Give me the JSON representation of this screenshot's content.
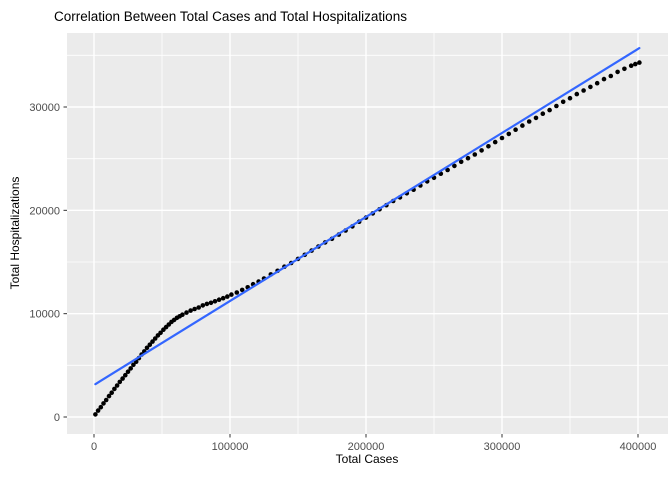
{
  "title": "Correlation Between Total Cases and Total Hospitalizations",
  "chart_data": {
    "type": "scatter",
    "title": "Correlation Between Total Cases and Total Hospitalizations",
    "xlabel": "Total Cases",
    "ylabel": "Total Hospitalizations",
    "x_ticks": [
      0,
      100000,
      200000,
      300000,
      400000
    ],
    "x_tick_labels": [
      "0",
      "100000",
      "200000",
      "300000",
      "400000"
    ],
    "x_minor_ticks": [
      50000,
      150000,
      250000,
      350000
    ],
    "y_ticks": [
      0,
      10000,
      20000,
      30000
    ],
    "y_tick_labels": [
      "0",
      "10000",
      "20000",
      "30000"
    ],
    "y_minor_ticks": [
      5000,
      15000,
      25000,
      35000
    ],
    "xlim": [
      -20000,
      422000
    ],
    "ylim": [
      -1700,
      37200
    ],
    "grid": true,
    "legend": false,
    "points": [
      [
        1000,
        250
      ],
      [
        3000,
        620
      ],
      [
        5000,
        950
      ],
      [
        7000,
        1320
      ],
      [
        9000,
        1650
      ],
      [
        11000,
        2020
      ],
      [
        13000,
        2350
      ],
      [
        15000,
        2720
      ],
      [
        17000,
        3050
      ],
      [
        19000,
        3400
      ],
      [
        21000,
        3720
      ],
      [
        23000,
        4050
      ],
      [
        25000,
        4380
      ],
      [
        27000,
        4700
      ],
      [
        29000,
        5050
      ],
      [
        31000,
        5350
      ],
      [
        33000,
        5700
      ],
      [
        35000,
        6050
      ],
      [
        37000,
        6350
      ],
      [
        39000,
        6700
      ],
      [
        41000,
        7000
      ],
      [
        43000,
        7300
      ],
      [
        45000,
        7600
      ],
      [
        47000,
        7900
      ],
      [
        49000,
        8150
      ],
      [
        51000,
        8450
      ],
      [
        53000,
        8700
      ],
      [
        55000,
        8950
      ],
      [
        57000,
        9200
      ],
      [
        59000,
        9400
      ],
      [
        61000,
        9600
      ],
      [
        63000,
        9750
      ],
      [
        65000,
        9900
      ],
      [
        68000,
        10100
      ],
      [
        71000,
        10300
      ],
      [
        74000,
        10450
      ],
      [
        77000,
        10600
      ],
      [
        80000,
        10800
      ],
      [
        83000,
        10950
      ],
      [
        86000,
        11050
      ],
      [
        89000,
        11200
      ],
      [
        92000,
        11350
      ],
      [
        95000,
        11500
      ],
      [
        98000,
        11650
      ],
      [
        101000,
        11850
      ],
      [
        105000,
        12050
      ],
      [
        109000,
        12300
      ],
      [
        113000,
        12550
      ],
      [
        117000,
        12850
      ],
      [
        121000,
        13100
      ],
      [
        125000,
        13400
      ],
      [
        130000,
        13800
      ],
      [
        135000,
        14150
      ],
      [
        140000,
        14550
      ],
      [
        145000,
        14900
      ],
      [
        150000,
        15300
      ],
      [
        155000,
        15700
      ],
      [
        160000,
        16100
      ],
      [
        165000,
        16500
      ],
      [
        170000,
        16900
      ],
      [
        175000,
        17250
      ],
      [
        180000,
        17650
      ],
      [
        185000,
        18050
      ],
      [
        190000,
        18450
      ],
      [
        195000,
        18900
      ],
      [
        200000,
        19300
      ],
      [
        205000,
        19700
      ],
      [
        210000,
        20100
      ],
      [
        215000,
        20500
      ],
      [
        220000,
        20900
      ],
      [
        225000,
        21250
      ],
      [
        230000,
        21650
      ],
      [
        235000,
        22000
      ],
      [
        240000,
        22400
      ],
      [
        245000,
        22800
      ],
      [
        250000,
        23150
      ],
      [
        255000,
        23550
      ],
      [
        260000,
        23900
      ],
      [
        265000,
        24300
      ],
      [
        270000,
        24700
      ],
      [
        275000,
        25050
      ],
      [
        280000,
        25400
      ],
      [
        285000,
        25800
      ],
      [
        290000,
        26200
      ],
      [
        295000,
        26600
      ],
      [
        300000,
        27000
      ],
      [
        305000,
        27400
      ],
      [
        310000,
        27800
      ],
      [
        315000,
        28200
      ],
      [
        320000,
        28600
      ],
      [
        325000,
        28950
      ],
      [
        330000,
        29350
      ],
      [
        335000,
        29700
      ],
      [
        340000,
        30100
      ],
      [
        345000,
        30500
      ],
      [
        350000,
        30850
      ],
      [
        355000,
        31250
      ],
      [
        360000,
        31600
      ],
      [
        365000,
        31950
      ],
      [
        370000,
        32300
      ],
      [
        375000,
        32700
      ],
      [
        380000,
        33000
      ],
      [
        385000,
        33400
      ],
      [
        390000,
        33700
      ],
      [
        395000,
        34000
      ],
      [
        398000,
        34150
      ],
      [
        401000,
        34300
      ]
    ],
    "trend_line": {
      "type": "linear",
      "from": [
        1000,
        3180
      ],
      "to": [
        401000,
        35700
      ]
    },
    "colors": {
      "panel_bg": "#EBEBEB",
      "grid_major": "#FFFFFF",
      "grid_minor": "#FFFFFF",
      "point": "#000000",
      "smooth_line": "#3366FF",
      "tick_mark": "#333333",
      "tick_label": "#4D4D4D",
      "title_text": "#000000",
      "figure_bg": "#FFFFFF"
    }
  }
}
